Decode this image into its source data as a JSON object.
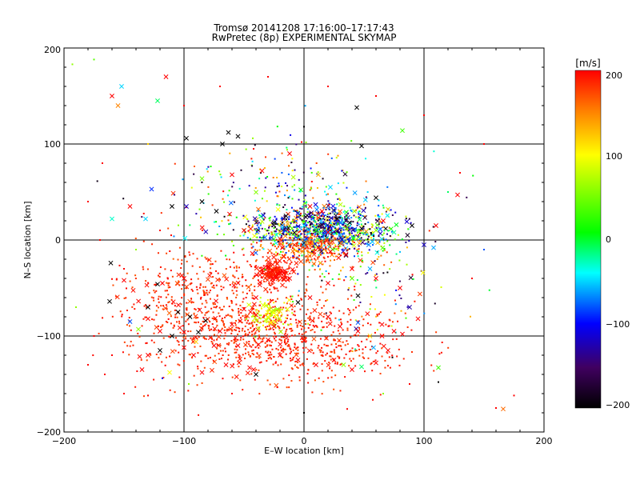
{
  "chart_data": {
    "type": "scatter",
    "title": "Tromsø 20141208 17:16:00–17:17:43",
    "subtitle": "RwPretec (8p) EXPERIMENTAL SKYMAP",
    "xlabel": "E–W location [km]",
    "ylabel": "N–S location [km]",
    "xlim": [
      -200,
      200
    ],
    "ylim": [
      -200,
      200
    ],
    "x_ticks": [
      "−200",
      "−100",
      "0",
      "100",
      "200"
    ],
    "y_ticks": [
      "−200",
      "−100",
      "0",
      "100",
      "200"
    ],
    "grid": true,
    "colorbar": {
      "label": "[m/s]",
      "range": [
        -200,
        200
      ],
      "ticks": [
        "200",
        "100",
        "0",
        "−100",
        "−200"
      ],
      "colors": [
        "#000000",
        "#400060",
        "#0000ff",
        "#00ffff",
        "#00ff00",
        "#ffff00",
        "#ff8000",
        "#ff0000"
      ]
    },
    "markers": [
      "dot",
      "cross"
    ],
    "points": [
      [
        -160,
        150,
        200,
        "x"
      ],
      [
        -152,
        160,
        -50,
        "x"
      ],
      [
        -115,
        170,
        200,
        "x"
      ],
      [
        -122,
        145,
        -10,
        "x"
      ],
      [
        -175,
        188,
        40,
        "d"
      ],
      [
        -193,
        183,
        60,
        "d"
      ],
      [
        -155,
        140,
        150,
        "x"
      ],
      [
        44,
        138,
        -200,
        "x"
      ],
      [
        82,
        114,
        30,
        "x"
      ],
      [
        0,
        118,
        -200,
        "d"
      ],
      [
        -98,
        106,
        -200,
        "x"
      ],
      [
        -63,
        112,
        -200,
        "x"
      ],
      [
        -55,
        108,
        -200,
        "x"
      ],
      [
        -68,
        100,
        -200,
        "x"
      ],
      [
        48,
        98,
        -200,
        "x"
      ],
      [
        -127,
        53,
        -90,
        "x"
      ],
      [
        -98,
        35,
        -120,
        "x"
      ],
      [
        -110,
        35,
        -200,
        "x"
      ],
      [
        -85,
        40,
        -200,
        "x"
      ],
      [
        -73,
        30,
        -200,
        "x"
      ],
      [
        -62,
        27,
        200,
        "x"
      ],
      [
        -160,
        22,
        -30,
        "x"
      ],
      [
        -132,
        22,
        -50,
        "x"
      ],
      [
        -145,
        35,
        200,
        "x"
      ],
      [
        -85,
        64,
        50,
        "x"
      ],
      [
        -60,
        68,
        200,
        "x"
      ],
      [
        -35,
        72,
        200,
        "x"
      ],
      [
        -12,
        90,
        200,
        "x"
      ],
      [
        12,
        68,
        130,
        "x"
      ],
      [
        22,
        55,
        -50,
        "x"
      ],
      [
        60,
        44,
        -200,
        "x"
      ],
      [
        70,
        32,
        120,
        "x"
      ],
      [
        90,
        15,
        -200,
        "x"
      ],
      [
        100,
        -5,
        -120,
        "x"
      ],
      [
        110,
        15,
        200,
        "x"
      ],
      [
        108,
        -8,
        -60,
        "x"
      ],
      [
        128,
        47,
        200,
        "x"
      ],
      [
        -161,
        -24,
        -200,
        "x"
      ],
      [
        -150,
        -42,
        200,
        "x"
      ],
      [
        -162,
        -64,
        -200,
        "x"
      ],
      [
        -130,
        -70,
        -200,
        "x"
      ],
      [
        -145,
        -85,
        -80,
        "x"
      ],
      [
        -138,
        -93,
        60,
        "x"
      ],
      [
        -130,
        -82,
        200,
        "x"
      ],
      [
        -120,
        -95,
        200,
        "x"
      ],
      [
        -118,
        -45,
        200,
        "x"
      ],
      [
        -100,
        -40,
        200,
        "x"
      ],
      [
        -105,
        -75,
        -200,
        "x"
      ],
      [
        -95,
        -80,
        -200,
        "x"
      ],
      [
        -88,
        -96,
        -200,
        "x"
      ],
      [
        -82,
        -84,
        -200,
        "x"
      ],
      [
        -110,
        -100,
        -200,
        "x"
      ],
      [
        -100,
        -112,
        200,
        "x"
      ],
      [
        -90,
        -106,
        120,
        "x"
      ],
      [
        -75,
        -110,
        200,
        "x"
      ],
      [
        -70,
        -95,
        200,
        "x"
      ],
      [
        -60,
        -88,
        200,
        "x"
      ],
      [
        -50,
        -72,
        200,
        "x"
      ],
      [
        -40,
        -78,
        200,
        "x"
      ],
      [
        -30,
        -80,
        100,
        "x"
      ],
      [
        -20,
        -74,
        120,
        "x"
      ],
      [
        -25,
        -90,
        200,
        "x"
      ],
      [
        -15,
        -100,
        200,
        "x"
      ],
      [
        -5,
        -65,
        -200,
        "x"
      ],
      [
        5,
        -60,
        200,
        "x"
      ],
      [
        20,
        -80,
        200,
        "x"
      ],
      [
        30,
        -90,
        200,
        "x"
      ],
      [
        45,
        -95,
        200,
        "x"
      ],
      [
        45,
        -86,
        -80,
        "x"
      ],
      [
        55,
        -100,
        120,
        "x"
      ],
      [
        65,
        -88,
        200,
        "x"
      ],
      [
        75,
        -95,
        200,
        "x"
      ],
      [
        88,
        -70,
        -130,
        "x"
      ],
      [
        80,
        -50,
        200,
        "x"
      ],
      [
        60,
        -40,
        200,
        "x"
      ],
      [
        40,
        -30,
        200,
        "x"
      ],
      [
        20,
        -45,
        200,
        "x"
      ],
      [
        45,
        -58,
        -200,
        "x"
      ],
      [
        65,
        -100,
        200,
        "x"
      ],
      [
        -40,
        -60,
        200,
        "x"
      ],
      [
        -120,
        -115,
        -200,
        "x"
      ],
      [
        -130,
        -120,
        200,
        "x"
      ],
      [
        -135,
        -135,
        200,
        "x"
      ],
      [
        -112,
        -138,
        100,
        "x"
      ],
      [
        -85,
        -138,
        200,
        "x"
      ],
      [
        -65,
        -130,
        200,
        "x"
      ],
      [
        -42,
        -135,
        200,
        "x"
      ],
      [
        -20,
        -120,
        200,
        "x"
      ],
      [
        -5,
        -125,
        200,
        "x"
      ],
      [
        10,
        -130,
        200,
        "x"
      ],
      [
        25,
        -125,
        200,
        "x"
      ],
      [
        40,
        -135,
        200,
        "x"
      ],
      [
        60,
        -128,
        200,
        "x"
      ],
      [
        70,
        -115,
        200,
        "x"
      ],
      [
        82,
        -98,
        200,
        "x"
      ],
      [
        95,
        -82,
        200,
        "x"
      ],
      [
        58,
        -112,
        -60,
        "x"
      ],
      [
        48,
        -132,
        -10,
        "x"
      ],
      [
        33,
        -130,
        60,
        "x"
      ],
      [
        -40,
        -140,
        -200,
        "x"
      ],
      [
        112,
        -133,
        30,
        "x"
      ],
      [
        112,
        -148,
        -200,
        "d"
      ],
      [
        166,
        -176,
        160,
        "x"
      ],
      [
        175,
        -162,
        200,
        "d"
      ],
      [
        -122,
        -46,
        -200,
        "x"
      ],
      [
        -100,
        -96,
        200,
        "x"
      ],
      [
        -92,
        -120,
        200,
        "x"
      ],
      [
        -55,
        -110,
        200,
        "x"
      ],
      [
        -30,
        -104,
        200,
        "x"
      ],
      [
        0,
        -105,
        200,
        "x"
      ],
      [
        -43,
        -14,
        200,
        "x"
      ],
      [
        -50,
        10,
        200,
        "x"
      ],
      [
        -25,
        18,
        -200,
        "x"
      ],
      [
        -15,
        25,
        -200,
        "x"
      ],
      [
        -5,
        28,
        -120,
        "x"
      ],
      [
        5,
        35,
        200,
        "x"
      ],
      [
        15,
        30,
        200,
        "x"
      ],
      [
        28,
        22,
        -200,
        "x"
      ],
      [
        38,
        18,
        -200,
        "x"
      ],
      [
        48,
        12,
        -200,
        "x"
      ],
      [
        -20,
        8,
        120,
        "x"
      ],
      [
        -10,
        12,
        40,
        "x"
      ],
      [
        0,
        15,
        -40,
        "x"
      ],
      [
        10,
        10,
        20,
        "x"
      ],
      [
        20,
        8,
        200,
        "x"
      ],
      [
        30,
        5,
        -60,
        "x"
      ],
      [
        -18,
        -8,
        200,
        "x"
      ],
      [
        -8,
        -5,
        180,
        "x"
      ],
      [
        2,
        -3,
        150,
        "x"
      ],
      [
        12,
        -8,
        200,
        "x"
      ],
      [
        22,
        -12,
        200,
        "x"
      ],
      [
        35,
        -15,
        200,
        "x"
      ],
      [
        -30,
        -28,
        200,
        "x"
      ],
      [
        -22,
        -35,
        200,
        "x"
      ],
      [
        -16,
        -32,
        200,
        "x"
      ],
      [
        -26,
        -40,
        200,
        "x"
      ],
      [
        -12,
        -40,
        200,
        "x"
      ],
      [
        -38,
        -92,
        80,
        "x"
      ],
      [
        -28,
        -86,
        100,
        "x"
      ],
      [
        -22,
        -72,
        60,
        "x"
      ],
      [
        -34,
        -68,
        90,
        "x"
      ],
      [
        40,
        -40,
        40,
        "x"
      ],
      [
        55,
        -30,
        -60,
        "x"
      ],
      [
        60,
        10,
        60,
        "x"
      ],
      [
        66,
        20,
        200,
        "x"
      ],
      [
        75,
        8,
        -20,
        "x"
      ],
      [
        42,
        30,
        60,
        "x"
      ],
      [
        -2,
        102,
        200,
        "d"
      ],
      [
        -42,
        95,
        200,
        "d"
      ],
      [
        -150,
        -160,
        200,
        "d"
      ],
      [
        -166,
        -140,
        200,
        "d"
      ],
      [
        -180,
        -130,
        200,
        "d"
      ],
      [
        -190,
        -70,
        60,
        "d"
      ],
      [
        -130,
        -162,
        200,
        "d"
      ],
      [
        -118,
        -144,
        -100,
        "d"
      ],
      [
        -96,
        -150,
        60,
        "d"
      ],
      [
        -60,
        -160,
        200,
        "d"
      ],
      [
        0,
        -180,
        -200,
        "d"
      ],
      [
        36,
        -176,
        200,
        "d"
      ],
      [
        66,
        -160,
        60,
        "d"
      ],
      [
        88,
        -150,
        200,
        "d"
      ],
      [
        160,
        -175,
        200,
        "d"
      ],
      [
        130,
        70,
        200,
        "d"
      ],
      [
        120,
        50,
        -10,
        "d"
      ],
      [
        150,
        -10,
        -80,
        "d"
      ],
      [
        140,
        -40,
        200,
        "d"
      ],
      [
        -170,
        0,
        200,
        "d"
      ],
      [
        -180,
        40,
        200,
        "d"
      ],
      [
        -168,
        80,
        200,
        "d"
      ],
      [
        -130,
        100,
        120,
        "d"
      ],
      [
        -100,
        140,
        200,
        "d"
      ],
      [
        -70,
        160,
        200,
        "d"
      ],
      [
        -30,
        170,
        200,
        "d"
      ],
      [
        20,
        160,
        200,
        "d"
      ],
      [
        60,
        150,
        200,
        "d"
      ],
      [
        100,
        130,
        200,
        "d"
      ],
      [
        150,
        100,
        200,
        "d"
      ],
      [
        -120,
        10,
        200,
        "d"
      ],
      [
        -140,
        -10,
        60,
        "d"
      ],
      [
        -150,
        -30,
        200,
        "d"
      ],
      [
        -175,
        -100,
        200,
        "d"
      ],
      [
        -160,
        -120,
        200,
        "d"
      ]
    ],
    "clusters": [
      {
        "cx": 12,
        "cy": 10,
        "sx": 34,
        "sy": 12,
        "n": 700,
        "vmin": -200,
        "vmax": 200,
        "cross": 0.18
      },
      {
        "cx": 2,
        "cy": -10,
        "sx": 20,
        "sy": 8,
        "n": 220,
        "vmin": 140,
        "vmax": 200,
        "cross": 0.15
      },
      {
        "cx": 20,
        "cy": 15,
        "sx": 28,
        "sy": 10,
        "n": 260,
        "vmin": -200,
        "vmax": -40,
        "cross": 0.2
      },
      {
        "cx": -26,
        "cy": -34,
        "sx": 7,
        "sy": 6,
        "n": 160,
        "vmin": 180,
        "vmax": 200,
        "cross": 0.4
      },
      {
        "cx": -40,
        "cy": -95,
        "sx": 35,
        "sy": 22,
        "n": 520,
        "vmin": 170,
        "vmax": 200,
        "cross": 0.08
      },
      {
        "cx": -110,
        "cy": -75,
        "sx": 28,
        "sy": 40,
        "n": 260,
        "vmin": 170,
        "vmax": 200,
        "cross": 0.08
      },
      {
        "cx": 20,
        "cy": -110,
        "sx": 40,
        "sy": 25,
        "n": 300,
        "vmin": 170,
        "vmax": 200,
        "cross": 0.05
      },
      {
        "cx": -70,
        "cy": -40,
        "sx": 30,
        "sy": 20,
        "n": 140,
        "vmin": 160,
        "vmax": 200,
        "cross": 0.08
      },
      {
        "cx": -20,
        "cy": 50,
        "sx": 45,
        "sy": 25,
        "n": 180,
        "vmin": -200,
        "vmax": 200,
        "cross": 0.06
      },
      {
        "cx": -28,
        "cy": -78,
        "sx": 8,
        "sy": 8,
        "n": 80,
        "vmin": 60,
        "vmax": 110,
        "cross": 0.15
      },
      {
        "cx": 50,
        "cy": -40,
        "sx": 30,
        "sy": 30,
        "n": 120,
        "vmin": -200,
        "vmax": 200,
        "cross": 0.05
      }
    ]
  }
}
